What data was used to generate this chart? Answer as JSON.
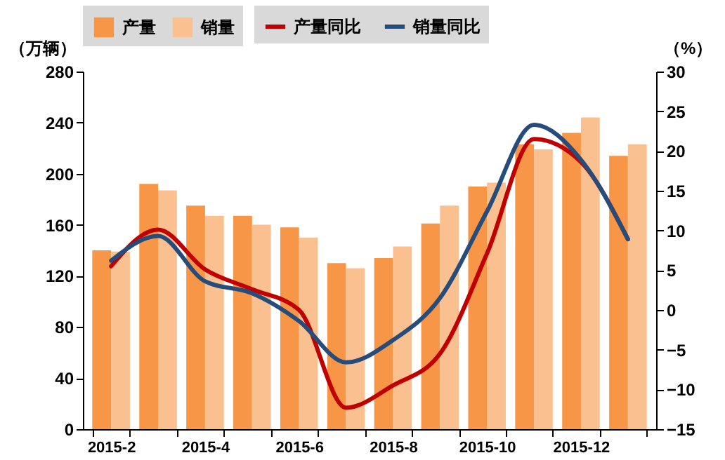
{
  "chart_data": {
    "type": "bar",
    "categories": [
      "2015-2",
      null,
      "2015-4",
      null,
      "2015-6",
      null,
      "2015-8",
      null,
      "2015-10",
      null,
      "2015-12",
      null
    ],
    "ylabel": "（万辆）",
    "y2label": "（%）",
    "ylim": [
      0,
      280
    ],
    "yticks": [
      0,
      40,
      80,
      120,
      160,
      200,
      240,
      280
    ],
    "y2lim": [
      -15,
      30
    ],
    "y2ticks": [
      -15,
      -10,
      -5,
      0,
      5,
      10,
      15,
      20,
      25,
      30
    ],
    "grid": false,
    "legend": "top",
    "series": [
      {
        "name": "产量",
        "color": "#f79646",
        "values": [
          140,
          192,
          175,
          167,
          158,
          130,
          134,
          161,
          190,
          223,
          232,
          214
        ]
      },
      {
        "name": "销量",
        "color": "#fac090",
        "values": [
          139,
          187,
          167,
          160,
          150,
          126,
          143,
          175,
          193,
          219,
          244,
          223
        ]
      },
      {
        "name": "产量同比",
        "type": "line",
        "axis": "y2",
        "color": "#c00000",
        "values": [
          5.5,
          10.1,
          5.1,
          2.6,
          0,
          -12.3,
          -9.5,
          -5.5,
          7.1,
          21.5,
          18.6,
          8.9
        ]
      },
      {
        "name": "销量同比",
        "type": "line",
        "axis": "y2",
        "color": "#254c7b",
        "values": [
          6.2,
          9.3,
          3.6,
          2.1,
          -1.4,
          -6.6,
          -3.8,
          1.5,
          12.4,
          23.3,
          18.9,
          8.9
        ]
      }
    ]
  }
}
